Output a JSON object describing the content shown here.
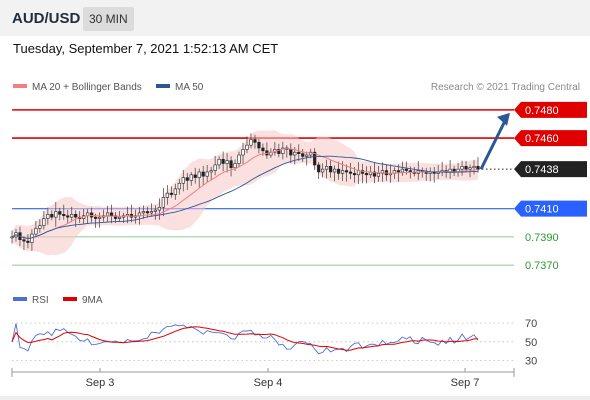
{
  "header": {
    "symbol": "AUD/USD",
    "interval": "30 MIN"
  },
  "timestamp": "Tuesday, September 7, 2021 1:52:13 AM CET",
  "legend": {
    "ma20": "MA 20 + Bollinger Bands",
    "ma50": "MA 50",
    "ma20_color": "#f08080",
    "ma50_color": "#2b5797"
  },
  "credit": "Research © 2021 Trading Central",
  "colors": {
    "support": "#2962ff",
    "resistance": "#e00000",
    "target": "#2e9a2e",
    "current": "#222222",
    "rsi": "#4c6fd6",
    "rsi_ma": "#e00000"
  },
  "chart_data": [
    {
      "type": "candlestick",
      "symbol": "AUD/USD",
      "interval": "30 MIN",
      "ylim": [
        0.7363,
        0.7487
      ],
      "xlabels": [
        "Sep 3",
        "Sep 4",
        "Sep 7"
      ],
      "current_price": "0.7438",
      "levels": [
        {
          "label": "0.7480",
          "value": 0.748,
          "kind": "resistance"
        },
        {
          "label": "0.7460",
          "value": 0.746,
          "kind": "resistance"
        },
        {
          "label": "0.7410",
          "value": 0.741,
          "kind": "support"
        },
        {
          "label": "0.7390",
          "value": 0.739,
          "kind": "target"
        },
        {
          "label": "0.7370",
          "value": 0.737,
          "kind": "target"
        }
      ],
      "forecast_arrow": {
        "from": 0.7438,
        "to": 0.748
      },
      "closes": [
        0.739,
        0.7393,
        0.7388,
        0.7387,
        0.7386,
        0.7392,
        0.7396,
        0.7398,
        0.7403,
        0.7406,
        0.7404,
        0.7408,
        0.7406,
        0.7405,
        0.7404,
        0.7406,
        0.7404,
        0.7403,
        0.7405,
        0.7407,
        0.7404,
        0.7403,
        0.7404,
        0.7405,
        0.7407,
        0.7405,
        0.7403,
        0.7404,
        0.7405,
        0.7406,
        0.7404,
        0.7405,
        0.7407,
        0.7408,
        0.7407,
        0.7408,
        0.7409,
        0.7411,
        0.7418,
        0.7421,
        0.742,
        0.7424,
        0.7428,
        0.7432,
        0.743,
        0.7434,
        0.7432,
        0.7436,
        0.7433,
        0.7436,
        0.7437,
        0.7441,
        0.7445,
        0.7442,
        0.7444,
        0.7439,
        0.7442,
        0.7448,
        0.7452,
        0.7455,
        0.7459,
        0.7457,
        0.7453,
        0.7451,
        0.7448,
        0.745,
        0.7452,
        0.7449,
        0.7453,
        0.7452,
        0.7448,
        0.745,
        0.7449,
        0.7447,
        0.7448,
        0.745,
        0.7441,
        0.7436,
        0.7438,
        0.744,
        0.7436,
        0.7438,
        0.7435,
        0.7437,
        0.7436,
        0.7435,
        0.7434,
        0.7437,
        0.7435,
        0.7434,
        0.7436,
        0.7433,
        0.7435,
        0.7437,
        0.7434,
        0.7435,
        0.7437,
        0.7436,
        0.7438,
        0.7437,
        0.7436,
        0.7435,
        0.7437,
        0.7436,
        0.7435,
        0.7436,
        0.7435,
        0.7436,
        0.7437,
        0.7436,
        0.7438,
        0.7436,
        0.7438,
        0.744,
        0.7438,
        0.7439,
        0.744,
        0.7438
      ]
    },
    {
      "type": "line",
      "name": "RSI",
      "series": [
        {
          "name": "RSI"
        },
        {
          "name": "9MA"
        }
      ],
      "yticks": [
        "70",
        "50",
        "30"
      ],
      "yticks_values": [
        70,
        50,
        30
      ],
      "ylim": [
        22,
        84
      ]
    }
  ]
}
